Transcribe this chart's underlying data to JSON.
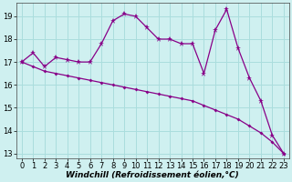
{
  "xlabel": "Windchill (Refroidissement éolien,°C)",
  "background_color": "#cff0f0",
  "grid_color": "#aadddd",
  "line_color": "#880088",
  "xlim": [
    -0.5,
    23.5
  ],
  "ylim": [
    12.8,
    19.6
  ],
  "yticks": [
    13,
    14,
    15,
    16,
    17,
    18,
    19
  ],
  "xticks": [
    0,
    1,
    2,
    3,
    4,
    5,
    6,
    7,
    8,
    9,
    10,
    11,
    12,
    13,
    14,
    15,
    16,
    17,
    18,
    19,
    20,
    21,
    22,
    23
  ],
  "series1_x": [
    0,
    1,
    2,
    3,
    4,
    5,
    6,
    7,
    8,
    9,
    10,
    11,
    12,
    13,
    14,
    15,
    16,
    17,
    18,
    19,
    20,
    21,
    22,
    23
  ],
  "series1_y": [
    17.0,
    16.8,
    16.6,
    16.5,
    16.4,
    16.3,
    16.2,
    16.1,
    16.0,
    15.9,
    15.8,
    15.7,
    15.6,
    15.5,
    15.4,
    15.3,
    15.1,
    14.9,
    14.7,
    14.5,
    14.2,
    13.9,
    13.5,
    13.0
  ],
  "series2_x": [
    0,
    1,
    2,
    3,
    4,
    5,
    6,
    7,
    8,
    9,
    10,
    11,
    12,
    13,
    14,
    15,
    16,
    17,
    18,
    19,
    20,
    21,
    22,
    23
  ],
  "series2_y": [
    17.0,
    17.4,
    16.8,
    17.2,
    17.1,
    17.0,
    17.0,
    17.8,
    18.8,
    19.1,
    19.0,
    18.5,
    18.0,
    18.0,
    17.8,
    17.8,
    16.5,
    18.4,
    19.3,
    17.6,
    16.3,
    15.3,
    13.8,
    13.0
  ],
  "xlabel_fontsize": 6.5,
  "tick_fontsize": 6.0,
  "linewidth": 0.9,
  "marker_size_star": 4.5,
  "marker_size_dot": 2.0
}
